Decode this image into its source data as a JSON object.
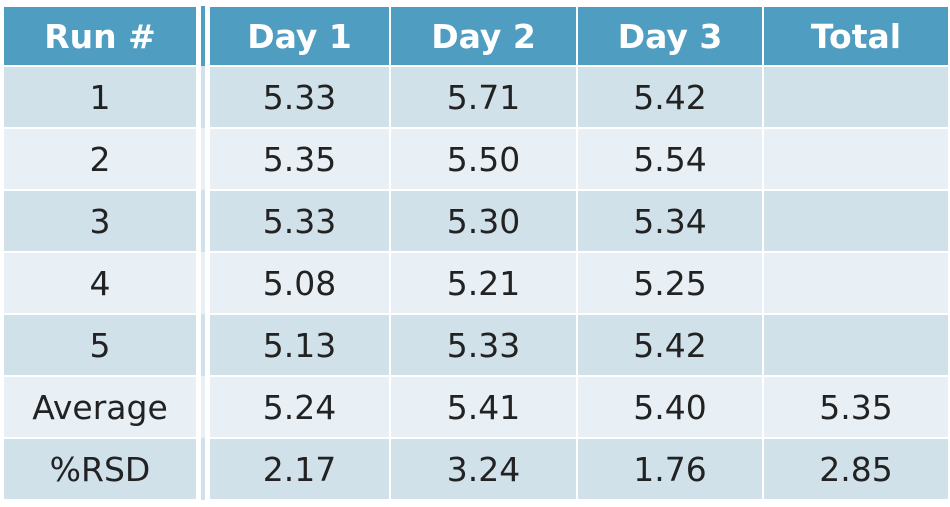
{
  "table": {
    "header": [
      "Run #",
      "Day 1",
      "Day 2",
      "Day 3",
      "Total"
    ],
    "rows": [
      [
        "1",
        "5.33",
        "5.71",
        "5.42"
      ],
      [
        "2",
        "5.35",
        "5.50",
        "5.54"
      ],
      [
        "3",
        "5.33",
        "5.30",
        "5.34"
      ],
      [
        "4",
        "5.08",
        "5.21",
        "5.25"
      ],
      [
        "5",
        "5.13",
        "5.33",
        "5.42"
      ],
      [
        "Average",
        "5.24",
        "5.41",
        "5.40",
        "5.35"
      ],
      [
        "%RSD",
        "2.17",
        "3.24",
        "1.76",
        "2.85"
      ]
    ]
  }
}
